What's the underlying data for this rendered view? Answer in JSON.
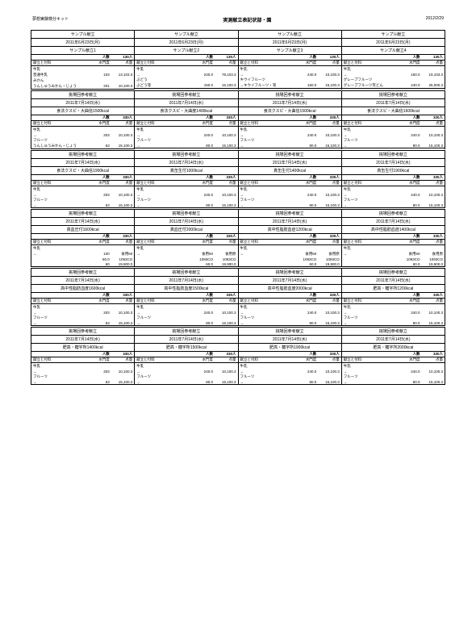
{
  "header": {
    "left": "夢想実験検分キット",
    "center": "実測献立表記状部・園",
    "right": "2012/2/29"
  },
  "blocks": [
    {
      "cols": [
        {
          "title": "サンプル献立",
          "date": "2011年6月23日(月)",
          "sub": "サンプル献立1",
          "h1": "人数",
          "h2": "130人",
          "sh1": "献立と付料",
          "sh2": "水門度",
          "sh3": "点量",
          "rows": [
            [
              "牛乳",
              "",
              ""
            ],
            [
              "普通牛乳",
              "103",
              "13,103.3"
            ],
            [
              "みかん",
              "",
              ""
            ],
            [
              "うんしゅうみかん・じょう",
              "201",
              "10,100.3"
            ]
          ]
        },
        {
          "title": "サンプル献立",
          "date": "2011年6月23日(月)",
          "sub": "サンプル献立2",
          "h1": "人数",
          "h2": "130人",
          "sh1": "献立と付料",
          "sh2": "水門度",
          "sh3": "点量",
          "rows": [
            [
              "牛乳",
              "",
              ""
            ],
            [
              "→",
              "240.0",
              "78,103.3"
            ],
            [
              "ぶどう",
              "",
              ""
            ],
            [
              "ぶどう等",
              "150.0",
              "15,100.3"
            ]
          ]
        },
        {
          "title": "サンプル献立",
          "date": "2011年6月23日(月)",
          "sub": "サンプル献立3",
          "h1": "人数",
          "h2": "130人",
          "sh1": "献立と付料",
          "sh2": "水門度",
          "sh3": "点量",
          "rows": [
            [
              "牛乳",
              "",
              ""
            ],
            [
              "→",
              "240.0",
              "10,100.3"
            ],
            [
              "キウイフルーツ",
              "",
              ""
            ],
            [
              "→キウイフルーツ・等",
              "150.0",
              "15,100.3"
            ]
          ]
        },
        {
          "title": "サンプル献立",
          "date": "2011年6月23日(月)",
          "sub": "サンプル献立4",
          "h1": "人数",
          "h2": "130人",
          "sh1": "献立と付料",
          "sh2": "水門度",
          "sh3": "点量",
          "rows": [
            [
              "牛乳",
              "",
              ""
            ],
            [
              "→",
              "150.0",
              "19,103.3"
            ],
            [
              "グレープフルーツ",
              "",
              ""
            ],
            [
              "グレープフルーツ笑どん",
              "240.0",
              "26,000.3"
            ]
          ]
        }
      ]
    },
    {
      "cols": [
        {
          "title": "挑場回参考献立",
          "date": "2011年7月14日(水)",
          "sub": "食法クスピ・大曲信1500kcal",
          "h1": "人数",
          "h2": "330人",
          "sh1": "献立と付料",
          "sh2": "水門度",
          "sh3": "点量",
          "rows": [
            [
              "牛乳",
              "",
              ""
            ],
            [
              "→",
              "203",
              "10,100.3"
            ],
            [
              "フルーツ",
              "",
              ""
            ],
            [
              "うんしゅうみかん・じょう",
              "63",
              "15,100.3"
            ]
          ]
        },
        {
          "title": "挑場回参考献立",
          "date": "2011年7月14日(水)",
          "sub": "食法クスピ・大曲度1400kcal",
          "h1": "人数",
          "h2": "330人",
          "sh1": "献立と付料",
          "sh2": "水門度",
          "sh3": "点量",
          "rows": [
            [
              "牛乳",
              "",
              ""
            ],
            [
              "→",
              "240.0",
              "10,100.3"
            ],
            [
              "フルーツ",
              "",
              ""
            ],
            [
              "→",
              "80.0",
              "15,100.3"
            ]
          ]
        },
        {
          "title": "挑場回参考献立",
          "date": "2011年7月14日(水)",
          "sub": "食法クスピ・大曲信1500kcal",
          "h1": "人数",
          "h2": "330人",
          "sh1": "献立と付料",
          "sh2": "水門度",
          "sh3": "点量",
          "rows": [
            [
              "牛乳",
              "",
              ""
            ],
            [
              "→",
              "240.0",
              "10,100.3"
            ],
            [
              "フルーツ",
              "",
              ""
            ],
            [
              "→",
              "80.0",
              "15,100.3"
            ]
          ]
        },
        {
          "title": "挑場回参考献立",
          "date": "2011年7月14日(水)",
          "sub": "食法クスピ・大曲信1600kcal",
          "h1": "人数",
          "h2": "330人",
          "sh1": "献立と付料",
          "sh2": "水門度",
          "sh3": "点量",
          "rows": [
            [
              "牛乳",
              "",
              ""
            ],
            [
              "→",
              "240.0",
              "10,100.3"
            ],
            [
              "フルーツ",
              "",
              ""
            ],
            [
              "→",
              "80.0",
              "15,100.3"
            ]
          ]
        }
      ]
    },
    {
      "cols": [
        {
          "title": "挑場回参考献立",
          "date": "2011年7月14日(水)",
          "sub": "食法クスピ・大曲信1900kcal",
          "h1": "人数",
          "h2": "330人",
          "sh1": "献立と付料",
          "sh2": "水門度",
          "sh3": "点量",
          "rows": [
            [
              "牛乳",
              "",
              ""
            ],
            [
              "→",
              "203",
              "10,100.3"
            ],
            [
              "フルーツ",
              "",
              ""
            ],
            [
              "→",
              "63",
              "15,100.3"
            ]
          ]
        },
        {
          "title": "挑場回参考献立",
          "date": "2011年7月14日(水)",
          "sub": "真缶生付1000kcal",
          "h1": "人数",
          "h2": "330人",
          "sh1": "献立と付料",
          "sh2": "水門度",
          "sh3": "点量",
          "rows": [
            [
              "牛乳",
              "",
              ""
            ],
            [
              "→",
              "240.0",
              "10,100.3"
            ],
            [
              "フルーツ",
              "",
              ""
            ],
            [
              "→",
              "80.0",
              "15,100.3"
            ]
          ]
        },
        {
          "title": "挑場回参考献立",
          "date": "2011年7月14日(水)",
          "sub": "真缶生付1400kcal",
          "h1": "人数",
          "h2": "330人",
          "sh1": "献立と付料",
          "sh2": "水門度",
          "sh3": "点量",
          "rows": [
            [
              "牛乳",
              "",
              ""
            ],
            [
              "→",
              "240.0",
              "10,100.3"
            ],
            [
              "フルーツ",
              "",
              ""
            ],
            [
              "→",
              "80.0",
              "15,100.3"
            ]
          ]
        },
        {
          "title": "挑場回参考献立",
          "date": "2011年7月14日(水)",
          "sub": "真缶生付1900kcal",
          "h1": "人数",
          "h2": "330人",
          "sh1": "献立と付料",
          "sh2": "水門度",
          "sh3": "点量",
          "rows": [
            [
              "牛乳",
              "",
              ""
            ],
            [
              "→",
              "240.0",
              "10,100.3"
            ],
            [
              "フルーツ",
              "",
              ""
            ],
            [
              "→",
              "80.0",
              "15,100.3"
            ]
          ]
        }
      ]
    },
    {
      "cols": [
        {
          "title": "挑場回参考献立",
          "date": "2011年7月14日(水)",
          "sub": "真血圧付1600kcal",
          "h1": "人数",
          "h2": "330人",
          "sh1": "献立と付料",
          "sh2": "水門度",
          "sh3": "点量",
          "rows": [
            [
              "牛乳",
              "",
              ""
            ],
            [
              "→",
              "100",
              "食用50"
            ],
            [
              "",
              "80.0",
              "1093CO"
            ],
            [
              "",
              "60",
              "19,900.0"
            ]
          ]
        },
        {
          "title": "挑場回参考献立",
          "date": "2011年7月14日(水)",
          "sub": "真血圧付2000kcal",
          "h1": "人数",
          "h2": "330人",
          "sh1": "献立と付料",
          "sh2": "水門度",
          "sh3": "点量",
          "rows": [
            [
              "牛乳",
              "",
              ""
            ],
            [
              "→",
              "食用50",
              "食用原"
            ],
            [
              "",
              "1093CO",
              "1093CO"
            ],
            [
              "",
              "60.0",
              "19,900.0"
            ]
          ]
        },
        {
          "title": "挑場回参考献立",
          "date": "2011年7月14日(水)",
          "sub": "高中性脂肪血症1200kcal",
          "h1": "人数",
          "h2": "330人",
          "sh1": "献立と付料",
          "sh2": "水門度",
          "sh3": "点量",
          "rows": [
            [
              "牛乳",
              "",
              ""
            ],
            [
              "→",
              "食用50",
              "食用原"
            ],
            [
              "",
              "1093CO",
              "1093CO"
            ],
            [
              "",
              "60.0",
              "19,900.0"
            ]
          ]
        },
        {
          "title": "挑場回参考献立",
          "date": "2011年7月14日(水)",
          "sub": "高中性脂肪血症1400kcal",
          "h1": "人数",
          "h2": "330人",
          "sh1": "献立と付料",
          "sh2": "水門度",
          "sh3": "点量",
          "rows": [
            [
              "牛乳",
              "",
              ""
            ],
            [
              "→",
              "食用50",
              "食用原"
            ],
            [
              "",
              "1093CO",
              "1093CO"
            ],
            [
              "",
              "60.0",
              "19,900.0"
            ]
          ]
        }
      ]
    },
    {
      "cols": [
        {
          "title": "挑場回参考献立",
          "date": "2011年7月14日(水)",
          "sub": "高中性脂肪血度1600kcal",
          "h1": "人数",
          "h2": "330人",
          "sh1": "献立と付料",
          "sh2": "水門度",
          "sh3": "点量",
          "rows": [
            [
              "牛乳",
              "",
              ""
            ],
            [
              "→",
              "203",
              "10,100.3"
            ],
            [
              "フルーツ",
              "",
              ""
            ],
            [
              "→",
              "63",
              "15,100.3"
            ]
          ]
        },
        {
          "title": "挑場回参考献立",
          "date": "2011年7月14日(水)",
          "sub": "高中性脂肪血度1500kcal",
          "h1": "人数",
          "h2": "330人",
          "sh1": "献立と付料",
          "sh2": "水門度",
          "sh3": "点量",
          "rows": [
            [
              "牛乳",
              "",
              ""
            ],
            [
              "→",
              "240.0",
              "10,100.3"
            ],
            [
              "フルーツ",
              "",
              ""
            ],
            [
              "→",
              "80.0",
              "15,100.3"
            ]
          ]
        },
        {
          "title": "挑場回参考献立",
          "date": "2011年7月14日(水)",
          "sub": "高中性脂肪血度2000kcal",
          "h1": "人数",
          "h2": "330人",
          "sh1": "献立と付料",
          "sh2": "水門度",
          "sh3": "点量",
          "rows": [
            [
              "牛乳",
              "",
              ""
            ],
            [
              "→",
              "240.0",
              "10,100.3"
            ],
            [
              "フルーツ",
              "",
              ""
            ],
            [
              "→",
              "80.0",
              "15,100.3"
            ]
          ]
        },
        {
          "title": "挑場回参考献立",
          "date": "2011年7月14日(水)",
          "sub": "肥高・糖字所1200kcal",
          "h1": "人数",
          "h2": "330人",
          "sh1": "献立と付料",
          "sh2": "水門度",
          "sh3": "点量",
          "rows": [
            [
              "牛乳",
              "",
              ""
            ],
            [
              "→",
              "240.0",
              "10,100.3"
            ],
            [
              "フルーツ",
              "",
              ""
            ],
            [
              "→",
              "80.0",
              "15,100.3"
            ]
          ]
        }
      ]
    },
    {
      "cols": [
        {
          "title": "挑場回参考献立",
          "date": "2011年7月14日(水)",
          "sub": "肥高・糖字所1400kcal",
          "h1": "人数",
          "h2": "330人",
          "sh1": "献立と付料",
          "sh2": "水門度",
          "sh3": "点量",
          "rows": [
            [
              "牛乳",
              "",
              ""
            ],
            [
              "→",
              "203",
              "10,100.3"
            ],
            [
              "フルーツ",
              "",
              ""
            ],
            [
              "→",
              "63",
              "15,100.3"
            ]
          ]
        },
        {
          "title": "挑場回参考献立",
          "date": "2011年7月14日(水)",
          "sub": "肥高・糖字所1500kcal",
          "h1": "人数",
          "h2": "330人",
          "sh1": "献立と付料",
          "sh2": "水門度",
          "sh3": "点量",
          "rows": [
            [
              "牛乳",
              "",
              ""
            ],
            [
              "→",
              "240.0",
              "10,100.3"
            ],
            [
              "フルーツ",
              "",
              ""
            ],
            [
              "→",
              "80.0",
              "15,100.3"
            ]
          ]
        },
        {
          "title": "挑場回参考献立",
          "date": "2011年7月14日(水)",
          "sub": "肥高・糖字所1900kcal",
          "h1": "人数",
          "h2": "330人",
          "sh1": "献立と付料",
          "sh2": "水門度",
          "sh3": "点量",
          "rows": [
            [
              "牛乳",
              "",
              ""
            ],
            [
              "→",
              "240.0",
              "10,100.3"
            ],
            [
              "フルーツ",
              "",
              ""
            ],
            [
              "→",
              "80.0",
              "15,100.3"
            ]
          ]
        },
        {
          "title": "挑場回参考献立",
          "date": "2011年7月14日(水)",
          "sub": "肥高・糖字所2000kcal",
          "h1": "人数",
          "h2": "330人",
          "sh1": "献立と付料",
          "sh2": "水門度",
          "sh3": "点量",
          "rows": [
            [
              "牛乳",
              "",
              ""
            ],
            [
              "→",
              "240.0",
              "10,100.3"
            ],
            [
              "フルーツ",
              "",
              ""
            ],
            [
              "→",
              "80.0",
              "15,100.3"
            ]
          ]
        }
      ]
    }
  ]
}
